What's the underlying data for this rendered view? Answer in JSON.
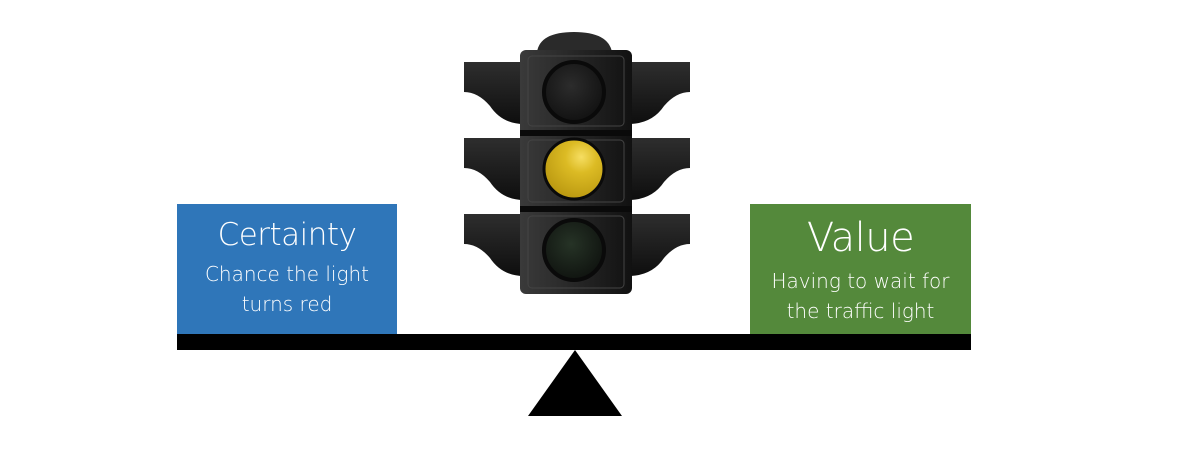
{
  "colors": {
    "certainty_box": "#2f76b9",
    "value_box": "#54893b",
    "beam": "#000000",
    "lit_lamp": "#d8b61b",
    "housing": "#222222"
  },
  "certainty": {
    "title": "Certainty",
    "desc_line1": "Chance the light",
    "desc_line2": "turns red"
  },
  "value": {
    "title": "Value",
    "desc_line1": "Having to wait for",
    "desc_line2": "the traffic light"
  },
  "traffic_light": {
    "icon": "traffic-light-icon",
    "lit": "amber"
  },
  "scale": {
    "icon": "balance-scale-icon"
  }
}
